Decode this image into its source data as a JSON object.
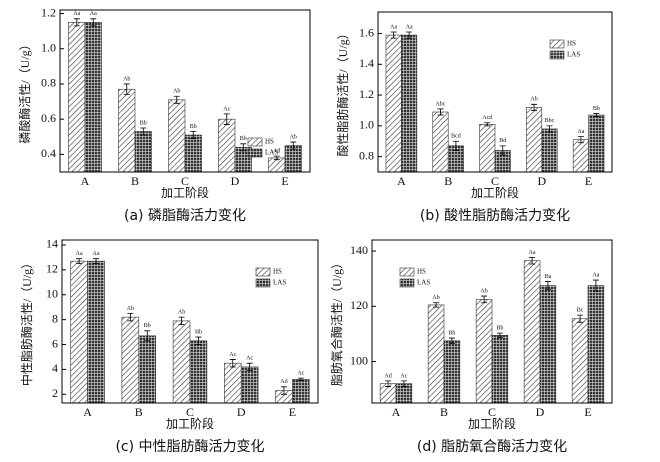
{
  "chart_data": [
    {
      "type": "bar",
      "title": "(a) 磷脂酶活力变化",
      "xlabel": "加工阶段",
      "ylabel": "磷酸酶活性/（U/g）",
      "categories": [
        "A",
        "B",
        "C",
        "D",
        "E"
      ],
      "series": [
        {
          "name": "HS",
          "color": "#333333",
          "hatch": "diagonal",
          "values": [
            1.15,
            0.77,
            0.71,
            0.6,
            0.38
          ],
          "errors": [
            0.02,
            0.03,
            0.02,
            0.03,
            0.01
          ],
          "labels": [
            "Aa",
            "Ab",
            "Ab",
            "Ac",
            "Ad"
          ]
        },
        {
          "name": "LAS",
          "color": "#333333",
          "hatch": "grid",
          "values": [
            1.15,
            0.53,
            0.51,
            0.44,
            0.45
          ],
          "errors": [
            0.02,
            0.02,
            0.02,
            0.02,
            0.02
          ],
          "labels": [
            "Aa",
            "Bb",
            "Bb",
            "Bb",
            "Ab"
          ]
        }
      ],
      "ylim": [
        0.3,
        1.22
      ],
      "yticks": [
        0.4,
        0.6,
        0.8,
        {
          "value": 1,
          "label": "1.0"
        },
        1.2
      ],
      "legend": "lower right"
    },
    {
      "type": "bar",
      "title": "(b) 酸性脂肪酶活力变化",
      "xlabel": "加工阶段",
      "ylabel": "酸性脂肪酶活性/（U/g）",
      "categories": [
        "A",
        "B",
        "C",
        "D",
        "E"
      ],
      "series": [
        {
          "name": "HS",
          "color": "#333333",
          "hatch": "diagonal",
          "values": [
            1.59,
            1.09,
            1.01,
            1.12,
            0.91
          ],
          "errors": [
            0.02,
            0.02,
            0.01,
            0.02,
            0.02
          ],
          "labels": [
            "Aa",
            "Abc",
            "Acd",
            "Ab",
            "Aa"
          ]
        },
        {
          "name": "LAS",
          "color": "#333333",
          "hatch": "grid",
          "values": [
            1.59,
            0.87,
            0.84,
            0.98,
            1.07
          ],
          "errors": [
            0.02,
            0.03,
            0.03,
            0.02,
            0.01
          ],
          "labels": [
            "Aa",
            "Bcd",
            "Bd",
            "Bbc",
            "Bb"
          ]
        }
      ],
      "ylim": [
        0.7,
        1.74
      ],
      "yticks": [
        0.8,
        {
          "value": 1,
          "label": "1.0"
        },
        1.2,
        1.4,
        1.6
      ],
      "legend": "upper right"
    },
    {
      "type": "bar",
      "title": "(c) 中性脂肪酶活力变化",
      "xlabel": "加工阶段",
      "ylabel": "中性脂肪酶活性/（U/g）",
      "categories": [
        "A",
        "B",
        "C",
        "D",
        "E"
      ],
      "series": [
        {
          "name": "HS",
          "color": "#333333",
          "hatch": "diagonal",
          "values": [
            12.7,
            8.2,
            7.9,
            4.5,
            2.3
          ],
          "errors": [
            0.2,
            0.3,
            0.3,
            0.3,
            0.3
          ],
          "labels": [
            "Aa",
            "Ab",
            "Ab",
            "Ac",
            "Ad"
          ]
        },
        {
          "name": "LAS",
          "color": "#333333",
          "hatch": "grid",
          "values": [
            12.7,
            6.7,
            6.3,
            4.2,
            3.2
          ],
          "errors": [
            0.2,
            0.4,
            0.3,
            0.3,
            0.1
          ],
          "labels": [
            "Aa",
            "Bb",
            "Bb",
            "Ac",
            "Ac"
          ]
        }
      ],
      "ylim": [
        1.3,
        14.4
      ],
      "yticks": [
        2,
        4,
        6,
        8,
        10,
        12,
        14
      ],
      "legend": "upper right"
    },
    {
      "type": "bar",
      "title": "(d) 脂肪氧合酶活力变化",
      "xlabel": "加工阶段",
      "ylabel": "脂肪氧合酶活性/（U/g）",
      "categories": [
        "A",
        "B",
        "C",
        "D",
        "E"
      ],
      "series": [
        {
          "name": "HS",
          "color": "#333333",
          "hatch": "diagonal",
          "values": [
            92,
            120.5,
            122.5,
            136.5,
            115.5
          ],
          "errors": [
            1,
            0.8,
            1.2,
            1.2,
            1.3
          ],
          "labels": [
            "Ad",
            "Ab",
            "Ab",
            "Aa",
            "Bc"
          ]
        },
        {
          "name": "LAS",
          "color": "#333333",
          "hatch": "grid",
          "values": [
            92,
            107.5,
            109.5,
            127.5,
            127.5
          ],
          "errors": [
            1,
            1,
            0.8,
            1.5,
            2
          ],
          "labels": [
            "Ac",
            "Bb",
            "Bb",
            "Ba",
            "Aa"
          ]
        }
      ],
      "ylim": [
        85,
        144
      ],
      "yticks": [
        100,
        120,
        140
      ],
      "legend": "upper left"
    }
  ]
}
